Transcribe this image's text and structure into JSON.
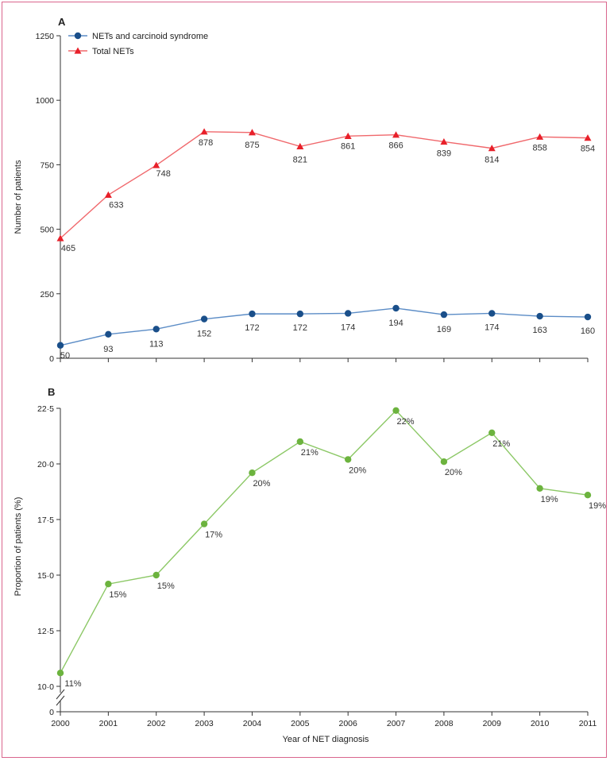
{
  "chart_data": [
    {
      "panel": "A",
      "type": "line",
      "ylabel": "Number of patients",
      "ylim": [
        0,
        1250
      ],
      "yticks": [
        0,
        250,
        500,
        750,
        1000,
        1250
      ],
      "x": [
        2000,
        2001,
        2002,
        2003,
        2004,
        2005,
        2006,
        2007,
        2008,
        2009,
        2010,
        2011
      ],
      "legend_position": "top-left",
      "series": [
        {
          "name": "NETs and carcinoid syndrome",
          "color": "#1a4f8a",
          "line_color": "#5b8cc6",
          "marker": "circle",
          "values": [
            50,
            93,
            113,
            152,
            172,
            172,
            174,
            194,
            169,
            174,
            163,
            160
          ],
          "labels": [
            "50",
            "93",
            "113",
            "152",
            "172",
            "172",
            "174",
            "194",
            "169",
            "174",
            "163",
            "160"
          ]
        },
        {
          "name": "Total NETs",
          "color": "#e8202a",
          "line_color": "#f0686c",
          "marker": "triangle",
          "values": [
            465,
            633,
            748,
            878,
            875,
            821,
            861,
            866,
            839,
            814,
            858,
            854
          ],
          "labels": [
            "465",
            "633",
            "748",
            "878",
            "875",
            "821",
            "861",
            "866",
            "839",
            "814",
            "858",
            "854"
          ]
        }
      ]
    },
    {
      "panel": "B",
      "type": "line",
      "xlabel": "Year of NET diagnosis",
      "ylabel": "Proportion of patients (%)",
      "ylim": [
        10,
        22.5
      ],
      "yticks": [
        "10·0",
        "12·5",
        "15·0",
        "17·5",
        "20·0",
        "22·5"
      ],
      "axis_break_label": "0",
      "x": [
        2000,
        2001,
        2002,
        2003,
        2004,
        2005,
        2006,
        2007,
        2008,
        2009,
        2010,
        2011
      ],
      "series": [
        {
          "color": "#6cb33e",
          "line_color": "#8cc866",
          "marker": "circle",
          "values": [
            10.6,
            14.6,
            15.0,
            17.3,
            19.6,
            21.0,
            20.2,
            22.4,
            20.1,
            21.4,
            18.9,
            18.6
          ],
          "labels": [
            "11%",
            "15%",
            "15%",
            "17%",
            "20%",
            "21%",
            "20%",
            "22%",
            "20%",
            "21%",
            "19%",
            "19%"
          ]
        }
      ]
    }
  ]
}
